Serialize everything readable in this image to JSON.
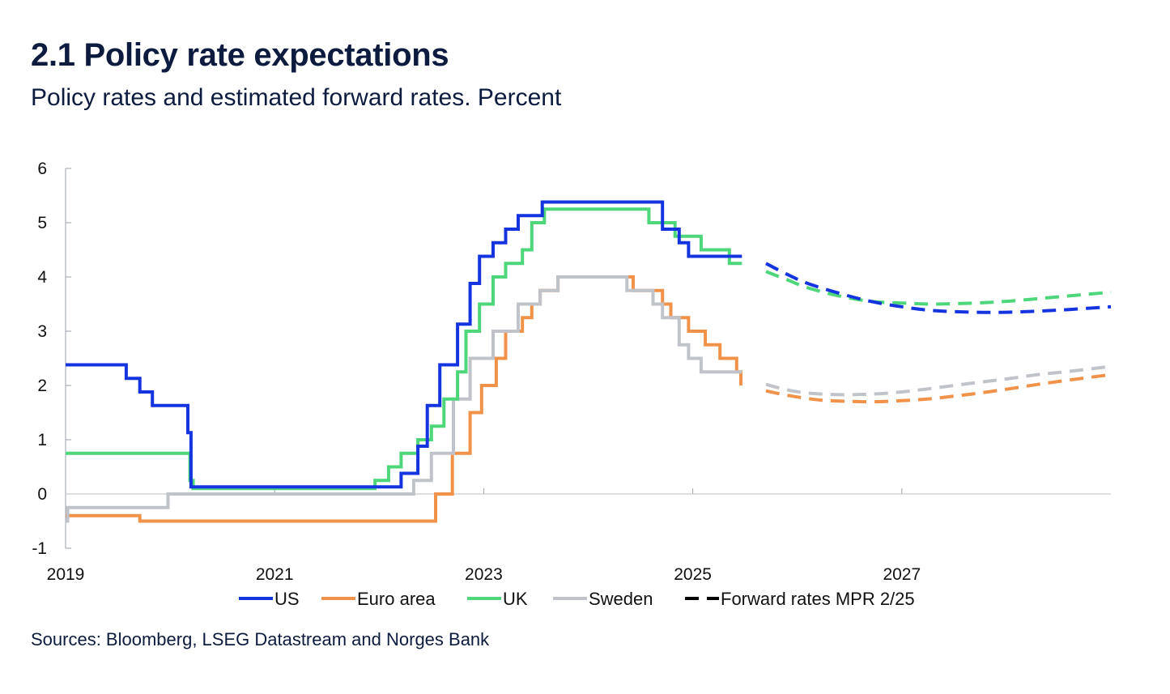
{
  "chart_data": {
    "type": "line",
    "title": "2.1 Policy rate expectations",
    "subtitle": "Policy rates and estimated forward rates. Percent",
    "source": "Sources: Bloomberg, LSEG  Datastream and Norges Bank",
    "xlabel": "",
    "ylabel": "",
    "xlim": [
      2019,
      2029
    ],
    "ylim": [
      -1,
      6
    ],
    "xticks": [
      2019,
      2021,
      2023,
      2025,
      2027
    ],
    "xtick_labels": [
      "2019",
      "2021",
      "2023",
      "2025",
      "2027"
    ],
    "yticks": [
      -1,
      0,
      1,
      2,
      3,
      4,
      5,
      6
    ],
    "ytick_labels": [
      "-1",
      "0",
      "1",
      "2",
      "3",
      "4",
      "5",
      "6"
    ],
    "legend_position": "bottom",
    "series": [
      {
        "name": "US",
        "color": "#1434e0",
        "style": "step",
        "points": [
          [
            2019.0,
            2.38
          ],
          [
            2019.58,
            2.13
          ],
          [
            2019.71,
            1.88
          ],
          [
            2019.83,
            1.63
          ],
          [
            2020.17,
            1.13
          ],
          [
            2020.2,
            0.13
          ],
          [
            2022.21,
            0.38
          ],
          [
            2022.37,
            0.88
          ],
          [
            2022.46,
            1.63
          ],
          [
            2022.58,
            2.38
          ],
          [
            2022.75,
            3.13
          ],
          [
            2022.87,
            3.88
          ],
          [
            2022.96,
            4.38
          ],
          [
            2023.09,
            4.63
          ],
          [
            2023.21,
            4.88
          ],
          [
            2023.33,
            5.13
          ],
          [
            2023.56,
            5.38
          ],
          [
            2024.71,
            4.88
          ],
          [
            2024.87,
            4.63
          ],
          [
            2024.96,
            4.38
          ],
          [
            2025.47,
            4.38
          ]
        ],
        "forward": [
          [
            2025.7,
            4.25
          ],
          [
            2025.9,
            4.05
          ],
          [
            2026.1,
            3.88
          ],
          [
            2026.4,
            3.7
          ],
          [
            2026.7,
            3.55
          ],
          [
            2027.0,
            3.45
          ],
          [
            2027.3,
            3.38
          ],
          [
            2027.7,
            3.35
          ],
          [
            2028.0,
            3.35
          ],
          [
            2028.3,
            3.37
          ],
          [
            2028.6,
            3.4
          ],
          [
            2029.0,
            3.45
          ]
        ]
      },
      {
        "name": "Euro area",
        "color": "#f0924a",
        "style": "step",
        "points": [
          [
            2019.0,
            -0.4
          ],
          [
            2019.71,
            -0.5
          ],
          [
            2022.54,
            0.0
          ],
          [
            2022.7,
            0.75
          ],
          [
            2022.87,
            1.5
          ],
          [
            2022.98,
            2.0
          ],
          [
            2023.12,
            2.5
          ],
          [
            2023.21,
            3.0
          ],
          [
            2023.37,
            3.25
          ],
          [
            2023.46,
            3.5
          ],
          [
            2023.54,
            3.75
          ],
          [
            2023.71,
            4.0
          ],
          [
            2024.43,
            3.75
          ],
          [
            2024.71,
            3.5
          ],
          [
            2024.79,
            3.25
          ],
          [
            2024.96,
            3.0
          ],
          [
            2025.12,
            2.75
          ],
          [
            2025.26,
            2.5
          ],
          [
            2025.42,
            2.25
          ],
          [
            2025.46,
            2.0
          ]
        ],
        "forward": [
          [
            2025.7,
            1.9
          ],
          [
            2025.9,
            1.82
          ],
          [
            2026.1,
            1.76
          ],
          [
            2026.3,
            1.72
          ],
          [
            2026.7,
            1.7
          ],
          [
            2027.0,
            1.72
          ],
          [
            2027.3,
            1.76
          ],
          [
            2027.7,
            1.85
          ],
          [
            2028.0,
            1.93
          ],
          [
            2028.3,
            2.02
          ],
          [
            2028.6,
            2.1
          ],
          [
            2029.0,
            2.2
          ]
        ]
      },
      {
        "name": "UK",
        "color": "#4dd67a",
        "style": "step",
        "points": [
          [
            2019.0,
            0.75
          ],
          [
            2020.19,
            0.25
          ],
          [
            2020.22,
            0.1
          ],
          [
            2021.96,
            0.25
          ],
          [
            2022.09,
            0.5
          ],
          [
            2022.21,
            0.75
          ],
          [
            2022.37,
            1.0
          ],
          [
            2022.5,
            1.25
          ],
          [
            2022.62,
            1.75
          ],
          [
            2022.75,
            2.25
          ],
          [
            2022.83,
            3.0
          ],
          [
            2022.96,
            3.5
          ],
          [
            2023.09,
            4.0
          ],
          [
            2023.21,
            4.25
          ],
          [
            2023.37,
            4.5
          ],
          [
            2023.46,
            5.0
          ],
          [
            2023.58,
            5.25
          ],
          [
            2024.58,
            5.0
          ],
          [
            2024.83,
            4.75
          ],
          [
            2025.08,
            4.5
          ],
          [
            2025.35,
            4.25
          ],
          [
            2025.47,
            4.25
          ]
        ],
        "forward": [
          [
            2025.7,
            4.1
          ],
          [
            2025.9,
            3.95
          ],
          [
            2026.1,
            3.8
          ],
          [
            2026.4,
            3.65
          ],
          [
            2026.7,
            3.55
          ],
          [
            2027.0,
            3.52
          ],
          [
            2027.3,
            3.5
          ],
          [
            2027.7,
            3.52
          ],
          [
            2028.0,
            3.55
          ],
          [
            2028.3,
            3.6
          ],
          [
            2028.6,
            3.65
          ],
          [
            2029.0,
            3.72
          ]
        ]
      },
      {
        "name": "Sweden",
        "color": "#c0c3c9",
        "style": "step",
        "points": [
          [
            2019.0,
            -0.5
          ],
          [
            2019.02,
            -0.25
          ],
          [
            2019.98,
            0.0
          ],
          [
            2022.33,
            0.25
          ],
          [
            2022.5,
            0.75
          ],
          [
            2022.71,
            1.75
          ],
          [
            2022.87,
            2.5
          ],
          [
            2023.09,
            3.0
          ],
          [
            2023.33,
            3.5
          ],
          [
            2023.54,
            3.75
          ],
          [
            2023.71,
            4.0
          ],
          [
            2024.37,
            3.75
          ],
          [
            2024.62,
            3.5
          ],
          [
            2024.71,
            3.25
          ],
          [
            2024.87,
            2.75
          ],
          [
            2024.96,
            2.5
          ],
          [
            2025.08,
            2.25
          ],
          [
            2025.47,
            2.25
          ]
        ],
        "forward": [
          [
            2025.7,
            2.02
          ],
          [
            2025.9,
            1.92
          ],
          [
            2026.1,
            1.86
          ],
          [
            2026.4,
            1.83
          ],
          [
            2026.7,
            1.84
          ],
          [
            2027.0,
            1.88
          ],
          [
            2027.3,
            1.95
          ],
          [
            2027.7,
            2.05
          ],
          [
            2028.0,
            2.12
          ],
          [
            2028.3,
            2.2
          ],
          [
            2028.6,
            2.26
          ],
          [
            2029.0,
            2.35
          ]
        ]
      }
    ],
    "legend": [
      {
        "label": "US",
        "color": "#1434e0",
        "dash": false
      },
      {
        "label": "Euro area",
        "color": "#f0924a",
        "dash": false
      },
      {
        "label": "UK",
        "color": "#4dd67a",
        "dash": false
      },
      {
        "label": "Sweden",
        "color": "#c0c3c9",
        "dash": false
      },
      {
        "label": "Forward rates MPR 2/25",
        "color": "#000000",
        "dash": true
      }
    ]
  }
}
